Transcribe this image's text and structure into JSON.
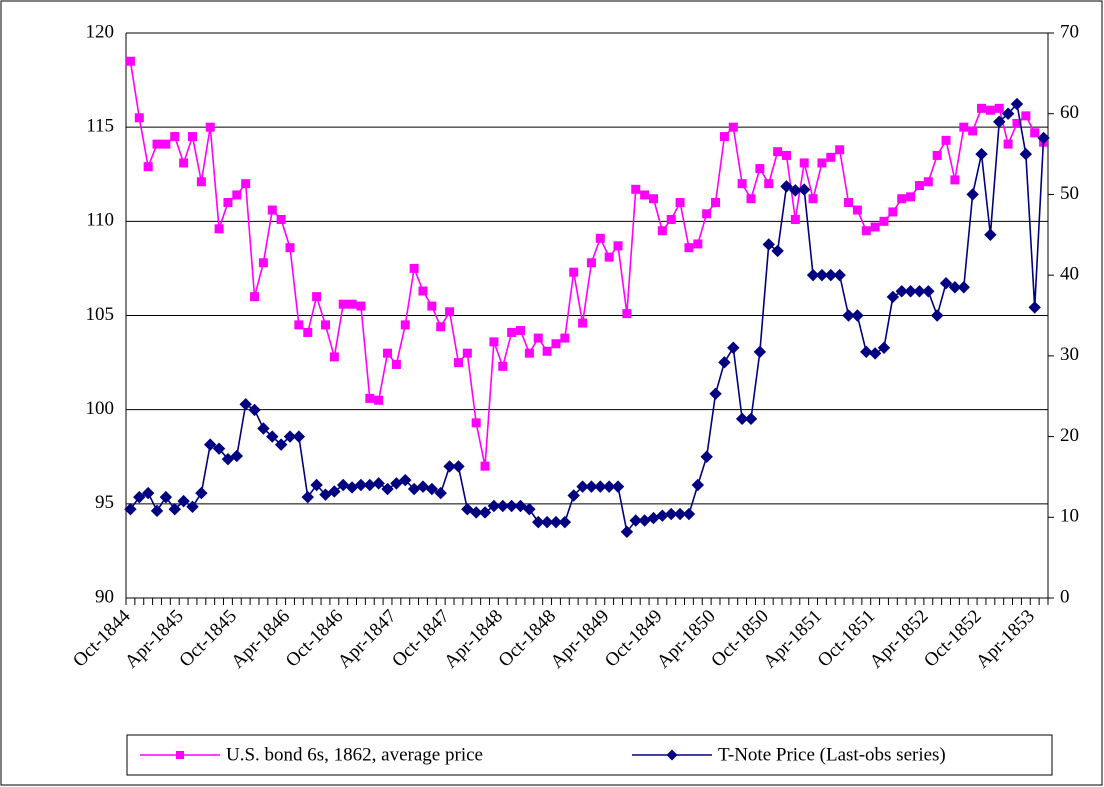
{
  "chart_data": {
    "type": "line",
    "categories": [
      "Oct-1844",
      null,
      null,
      null,
      null,
      null,
      "Apr-1845",
      null,
      null,
      null,
      null,
      null,
      "Oct-1845",
      null,
      null,
      null,
      null,
      null,
      "Apr-1846",
      null,
      null,
      null,
      null,
      null,
      "Oct-1846",
      null,
      null,
      null,
      null,
      null,
      "Apr-1847",
      null,
      null,
      null,
      null,
      null,
      "Oct-1847",
      null,
      null,
      null,
      null,
      null,
      "Apr-1848",
      null,
      null,
      null,
      null,
      null,
      "Oct-1848",
      null,
      null,
      null,
      null,
      null,
      "Apr-1849",
      null,
      null,
      null,
      null,
      null,
      "Oct-1849",
      null,
      null,
      null,
      null,
      null,
      "Apr-1850",
      null,
      null,
      null,
      null,
      null,
      "Oct-1850",
      null,
      null,
      null,
      null,
      null,
      "Apr-1851",
      null,
      null,
      null,
      null,
      null,
      "Oct-1851",
      null,
      null,
      null,
      null,
      null,
      "Apr-1852",
      null,
      null,
      null,
      null,
      null,
      "Oct-1852",
      null,
      null,
      null,
      null,
      null,
      "Apr-1853",
      null
    ],
    "series": [
      {
        "name": "U.S. bond 6s, 1862, average price",
        "color": "#ff00ff",
        "marker": "square",
        "values": [
          118.5,
          115.5,
          112.9,
          114.1,
          114.1,
          114.5,
          113.1,
          114.5,
          112.1,
          115.0,
          109.6,
          111.0,
          111.4,
          112.0,
          106.0,
          107.8,
          110.6,
          110.1,
          108.6,
          104.5,
          104.1,
          106.0,
          104.5,
          102.8,
          105.6,
          105.6,
          105.5,
          100.6,
          100.5,
          103.0,
          102.4,
          104.5,
          107.5,
          106.3,
          105.5,
          104.4,
          105.2,
          102.5,
          103.0,
          99.3,
          97.0,
          103.6,
          102.3,
          104.1,
          104.2,
          103.0,
          103.8,
          103.1,
          103.5,
          103.8,
          107.3,
          104.6,
          107.8,
          109.1,
          108.1,
          108.7,
          105.1,
          111.7,
          111.4,
          111.2,
          109.5,
          110.1,
          111.0,
          108.6,
          108.8,
          110.4,
          111.0,
          114.5,
          115.0,
          112.0,
          111.2,
          112.8,
          112.0,
          113.7,
          113.5,
          110.1,
          113.1,
          111.2,
          113.1,
          113.4,
          113.8,
          111.0,
          110.6,
          109.5,
          109.7,
          110.0,
          110.5,
          111.2,
          111.3,
          111.9,
          112.1,
          113.5,
          114.3,
          112.2,
          115.0,
          114.8,
          116.0,
          115.9,
          116.0,
          114.1,
          115.2,
          115.6,
          114.7,
          114.2
        ]
      },
      {
        "name": "T-Note Price (Last-obs series)",
        "color": "#000080",
        "marker": "diamond",
        "axis": "y2",
        "values": [
          11,
          12.5,
          13,
          10.8,
          12.5,
          11,
          12,
          11.3,
          13,
          19,
          18.5,
          17.2,
          17.6,
          24,
          23.3,
          21,
          20,
          19,
          20,
          20,
          12.5,
          14,
          12.8,
          13.2,
          14,
          13.7,
          14,
          14,
          14.2,
          13.5,
          14.2,
          14.6,
          13.5,
          13.8,
          13.5,
          13,
          16.3,
          16.3,
          11,
          10.6,
          10.6,
          11.4,
          11.4,
          11.4,
          11.4,
          11,
          9.4,
          9.4,
          9.4,
          9.4,
          12.7,
          13.8,
          13.8,
          13.8,
          13.8,
          13.8,
          8.2,
          9.6,
          9.6,
          9.9,
          10.2,
          10.4,
          10.4,
          10.4,
          14,
          17.5,
          25.3,
          29.2,
          31,
          22.2,
          22.2,
          30.5,
          43.8,
          43,
          51,
          50.5,
          50.6,
          40,
          40,
          40,
          40,
          35,
          35,
          30.5,
          30.3,
          31,
          37.3,
          38,
          38,
          38,
          38,
          35,
          39,
          38.5,
          38.5,
          50,
          55,
          45,
          59,
          60,
          61.2,
          55,
          36,
          57
        ]
      }
    ],
    "ylim": [
      90,
      120
    ],
    "yticks": [
      90,
      95,
      100,
      105,
      110,
      115,
      120
    ],
    "y2lim": [
      0,
      70
    ],
    "y2ticks": [
      0,
      10,
      20,
      30,
      40,
      50,
      60,
      70
    ],
    "grid": true,
    "legend": "bottom"
  }
}
